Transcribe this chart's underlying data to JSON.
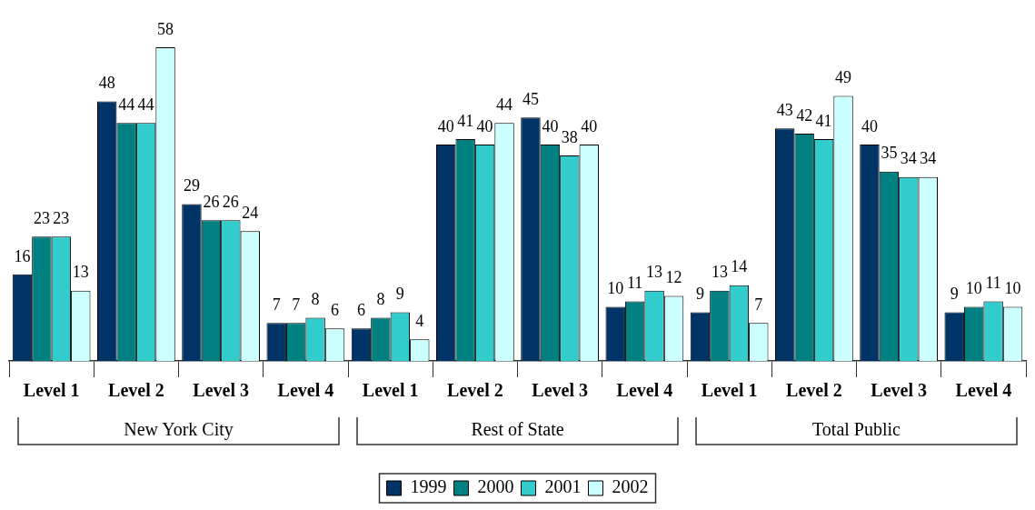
{
  "chart_data": {
    "type": "bar",
    "tick_labels": "x",
    "data_labels": true,
    "grid": false,
    "legend": "bottom",
    "categories": [
      "Level 1",
      "Level 2",
      "Level 3",
      "Level 4",
      "Level 1",
      "Level 2",
      "Level 3",
      "Level 4",
      "Level 1",
      "Level 2",
      "Level 3",
      "Level 4"
    ],
    "annotations": [
      "New York City",
      "Rest of State",
      "Total Public"
    ],
    "series": [
      {
        "name": "1999",
        "color": "#003366",
        "values": [
          16,
          48,
          29,
          7,
          6,
          40,
          45,
          10,
          9,
          43,
          40,
          9
        ]
      },
      {
        "name": "2000",
        "color": "#008080",
        "values": [
          23,
          44,
          26,
          7,
          8,
          41,
          40,
          11,
          13,
          42,
          35,
          10
        ]
      },
      {
        "name": "2001",
        "color": "#33cccc",
        "values": [
          23,
          44,
          26,
          8,
          9,
          40,
          38,
          13,
          14,
          41,
          34,
          11
        ]
      },
      {
        "name": "2002",
        "color": "#ccffff",
        "values": [
          13,
          58,
          24,
          6,
          4,
          44,
          40,
          12,
          7,
          49,
          34,
          10
        ]
      }
    ]
  }
}
